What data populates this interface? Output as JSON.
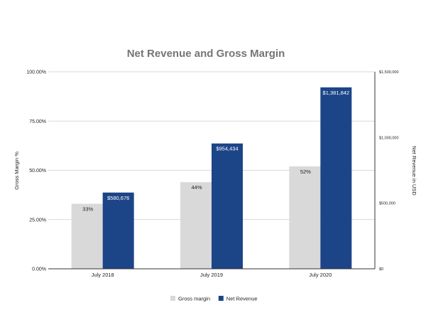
{
  "chart_data": {
    "type": "bar",
    "title": "Net Revenue and Gross Margin",
    "categories": [
      "July 2018",
      "July 2019",
      "July 2020"
    ],
    "series": [
      {
        "name": "Gross margin",
        "axis": "left",
        "color": "#d9d9d9",
        "values": [
          33,
          44,
          52
        ],
        "labels": [
          "33%",
          "44%",
          "52%"
        ]
      },
      {
        "name": "Net Revenue",
        "axis": "right",
        "color": "#1c4587",
        "values": [
          580676,
          954434,
          1381842
        ],
        "labels": [
          "$580,676",
          "$954,434",
          "$1,381,842"
        ]
      }
    ],
    "y_left": {
      "label": "Gross Margin %",
      "range": [
        0,
        100
      ],
      "ticks": [
        0,
        25,
        50,
        75,
        100
      ],
      "tick_labels": [
        "0.00%",
        "25.00%",
        "50.00%",
        "75.00%",
        "100.00%"
      ]
    },
    "y_right": {
      "label": "Net Revenue in USD",
      "range": [
        0,
        1500000
      ],
      "ticks": [
        0,
        500000,
        1000000,
        1500000
      ],
      "tick_labels": [
        "$0",
        "$500,000",
        "$1,000,000",
        "$1,500,000"
      ]
    },
    "grid": true,
    "legend_position": "bottom"
  }
}
